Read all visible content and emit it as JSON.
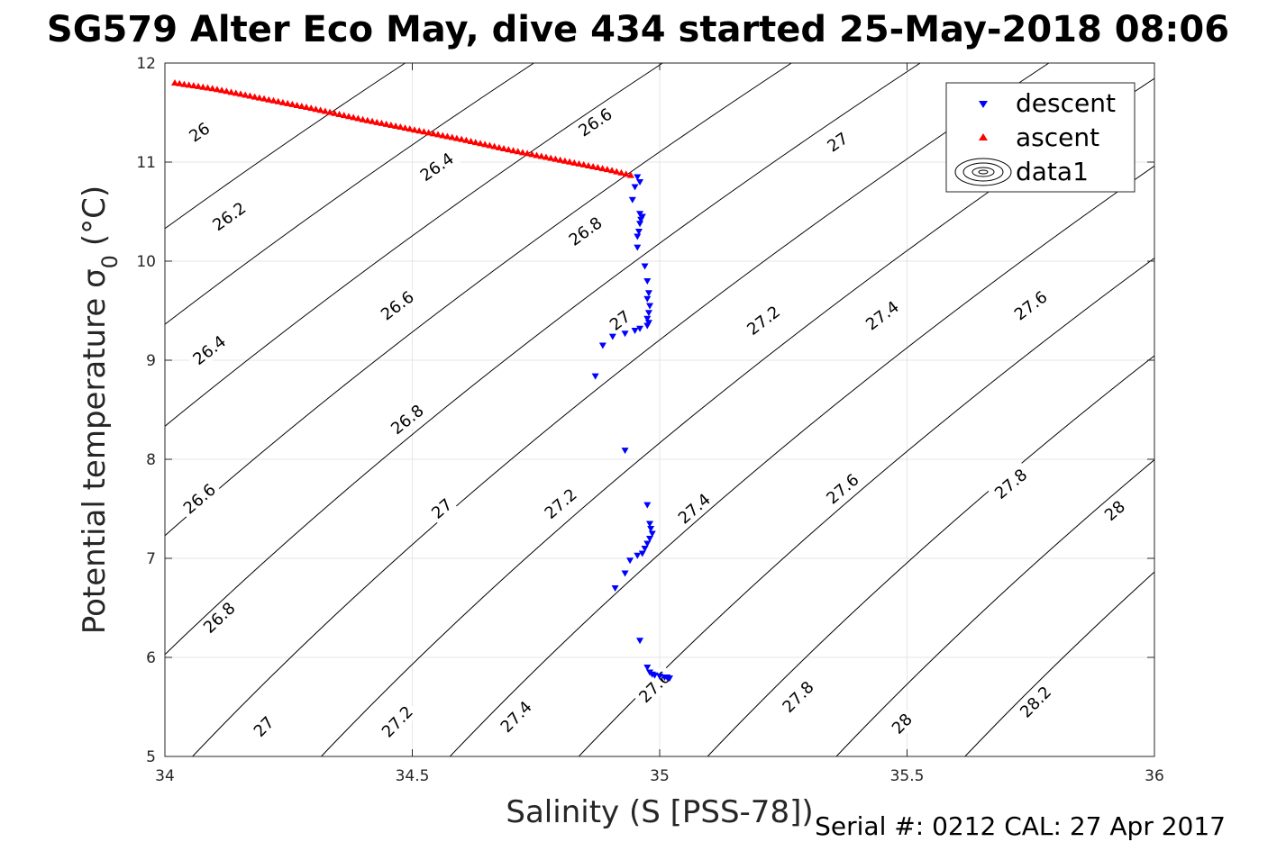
{
  "chart_data": {
    "type": "scatter",
    "title": "SG579 Alter Eco May, dive 434 started 25-May-2018 08:06",
    "xlabel": "Salinity (S [PSS-78])",
    "ylabel": "Potential temperature σ",
    "ylabel_subscript": "0",
    "ylabel_unit": "(°C)",
    "xlim": [
      34,
      36
    ],
    "ylim": [
      5,
      12
    ],
    "x_ticks": [
      34,
      34.5,
      35,
      35.5,
      36
    ],
    "x_tick_labels": [
      "34",
      "34.5",
      "35",
      "35.5",
      "36"
    ],
    "y_ticks": [
      5,
      6,
      7,
      8,
      9,
      10,
      11,
      12
    ],
    "y_tick_labels": [
      "5",
      "6",
      "7",
      "8",
      "9",
      "10",
      "11",
      "12"
    ],
    "grid": true,
    "legend_position": "top-right",
    "legend": [
      "descent",
      "ascent",
      "data1"
    ],
    "footer": "Serial #: 0212  CAL: 27 Apr 2017",
    "colors": {
      "descent": "#0000ff",
      "ascent": "#ff0000",
      "contour": "#000000",
      "grid": "#e6e6e6"
    },
    "contour_levels": [
      26,
      26.2,
      26.4,
      26.6,
      26.8,
      27,
      27.2,
      27.4,
      27.6,
      27.8,
      28,
      28.2
    ],
    "contour_labels": [
      {
        "text": "26",
        "s": 34.07,
        "t": 11.3
      },
      {
        "text": "26.2",
        "s": 34.13,
        "t": 10.45
      },
      {
        "text": "26.4",
        "s": 34.09,
        "t": 9.1
      },
      {
        "text": "26.6",
        "s": 34.07,
        "t": 7.6
      },
      {
        "text": "26.8",
        "s": 34.11,
        "t": 6.4
      },
      {
        "text": "27",
        "s": 34.2,
        "t": 5.3
      },
      {
        "text": "26.4",
        "s": 34.55,
        "t": 10.95
      },
      {
        "text": "26.6",
        "s": 34.47,
        "t": 9.55
      },
      {
        "text": "26.8",
        "s": 34.49,
        "t": 8.4
      },
      {
        "text": "27",
        "s": 34.56,
        "t": 7.5
      },
      {
        "text": "27.2",
        "s": 34.47,
        "t": 5.35
      },
      {
        "text": "26.6",
        "s": 34.87,
        "t": 11.4
      },
      {
        "text": "26.8",
        "s": 34.85,
        "t": 10.3
      },
      {
        "text": "27",
        "s": 34.92,
        "t": 9.4
      },
      {
        "text": "27.2",
        "s": 34.8,
        "t": 7.55
      },
      {
        "text": "27.4",
        "s": 34.71,
        "t": 5.4
      },
      {
        "text": "27.4",
        "s": 35.07,
        "t": 7.5
      },
      {
        "text": "27.6",
        "s": 34.99,
        "t": 5.7
      },
      {
        "text": "27",
        "s": 35.36,
        "t": 11.2
      },
      {
        "text": "27.2",
        "s": 35.21,
        "t": 9.4
      },
      {
        "text": "27.6",
        "s": 35.37,
        "t": 7.7
      },
      {
        "text": "27.8",
        "s": 35.28,
        "t": 5.6
      },
      {
        "text": "27.4",
        "s": 35.45,
        "t": 9.45
      },
      {
        "text": "28",
        "s": 35.49,
        "t": 5.33
      },
      {
        "text": "27.6",
        "s": 35.75,
        "t": 9.55
      },
      {
        "text": "27.8",
        "s": 35.71,
        "t": 7.75
      },
      {
        "text": "28",
        "s": 35.92,
        "t": 7.48
      },
      {
        "text": "28.2",
        "s": 35.76,
        "t": 5.55
      }
    ],
    "series": [
      {
        "name": "descent",
        "marker": "triangle-down",
        "x": [
          34.955,
          34.96,
          34.95,
          34.945,
          34.96,
          34.965,
          34.962,
          34.96,
          34.958,
          34.955,
          34.955,
          34.97,
          34.975,
          34.978,
          34.975,
          34.98,
          34.978,
          34.975,
          34.978,
          34.975,
          34.96,
          34.95,
          34.93,
          34.905,
          34.885,
          34.87,
          34.93,
          34.975,
          34.98,
          34.982,
          34.985,
          34.98,
          34.975,
          34.97,
          34.965,
          34.955,
          34.94,
          34.93,
          34.91,
          34.96,
          34.975,
          34.98,
          34.985,
          34.99,
          35.0,
          35.01,
          35.02,
          35.015
        ],
        "y": [
          10.85,
          10.8,
          10.75,
          10.62,
          10.48,
          10.45,
          10.42,
          10.38,
          10.3,
          10.25,
          10.14,
          9.95,
          9.8,
          9.68,
          9.62,
          9.55,
          9.48,
          9.42,
          9.38,
          9.35,
          9.32,
          9.3,
          9.27,
          9.24,
          9.15,
          8.84,
          8.09,
          7.54,
          7.35,
          7.3,
          7.25,
          7.2,
          7.15,
          7.1,
          7.05,
          7.03,
          6.98,
          6.85,
          6.7,
          6.17,
          5.9,
          5.85,
          5.83,
          5.82,
          5.81,
          5.8,
          5.79,
          5.8
        ]
      },
      {
        "name": "ascent",
        "marker": "triangle-up",
        "x": [
          34.02,
          34.1,
          34.2,
          34.3,
          34.4,
          34.5,
          34.6,
          34.7,
          34.8,
          34.9,
          34.94,
          34.95
        ],
        "y": [
          11.8,
          11.74,
          11.64,
          11.54,
          11.43,
          11.33,
          11.23,
          11.12,
          11.02,
          10.92,
          10.87,
          10.85
        ]
      }
    ]
  }
}
